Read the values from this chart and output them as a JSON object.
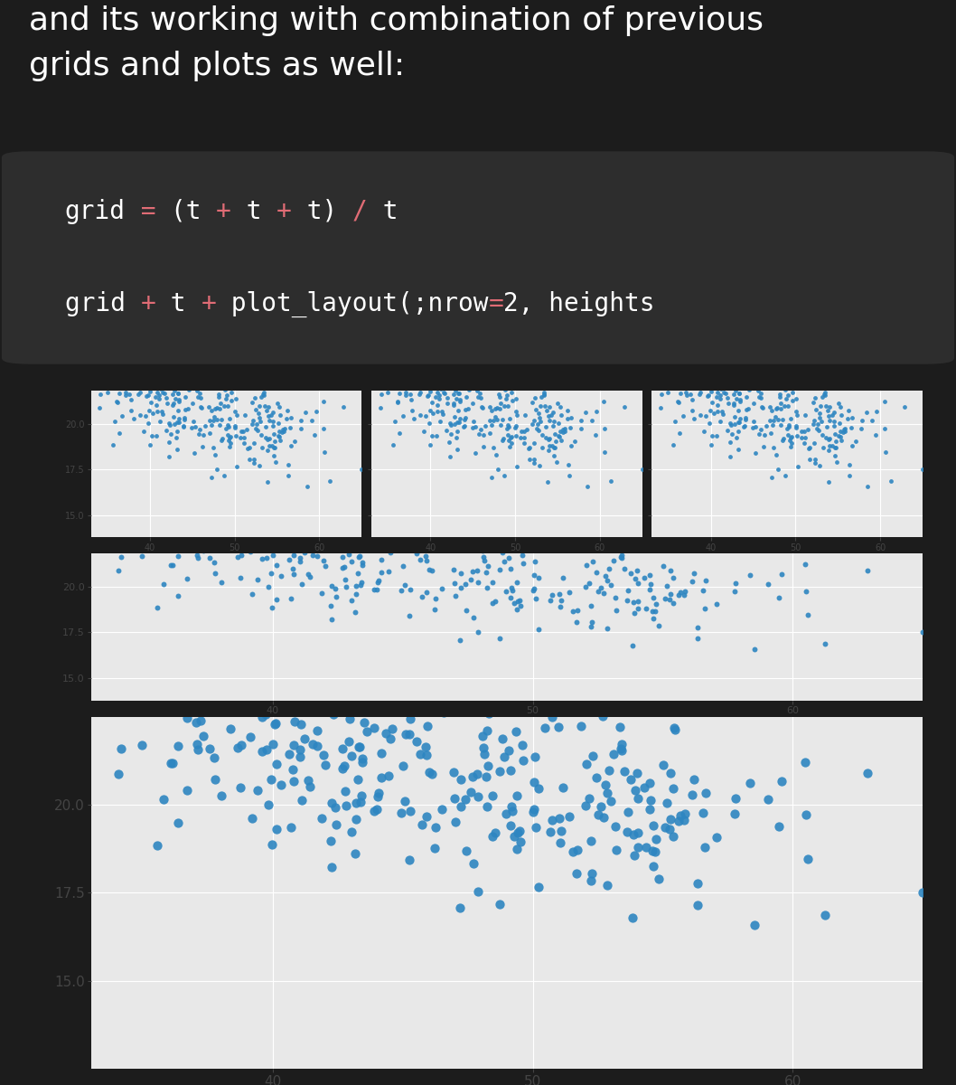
{
  "bg_color": "#1c1c1c",
  "text_color": "#ffffff",
  "title_text": "and its working with combination of previous\ngrids and plots as well:",
  "title_fontsize": 26,
  "title_fontweight": "normal",
  "code_bg": "#2d2d2d",
  "code_lines": [
    {
      "parts": [
        {
          "text": "grid",
          "color": "#ffffff"
        },
        {
          "text": " = ",
          "color": "#e06c75"
        },
        {
          "text": "(t ",
          "color": "#ffffff"
        },
        {
          "text": "+",
          "color": "#e06c75"
        },
        {
          "text": " t ",
          "color": "#ffffff"
        },
        {
          "text": "+",
          "color": "#e06c75"
        },
        {
          "text": " t) ",
          "color": "#ffffff"
        },
        {
          "text": "/",
          "color": "#e06c75"
        },
        {
          "text": " t",
          "color": "#ffffff"
        }
      ]
    },
    {
      "parts": [
        {
          "text": "grid ",
          "color": "#ffffff"
        },
        {
          "text": "+",
          "color": "#e06c75"
        },
        {
          "text": " t ",
          "color": "#ffffff"
        },
        {
          "text": "+",
          "color": "#e06c75"
        },
        {
          "text": " plot_layout(;nrow",
          "color": "#ffffff"
        },
        {
          "text": "=",
          "color": "#e06c75"
        },
        {
          "text": "2, heights",
          "color": "#ffffff"
        }
      ]
    }
  ],
  "code_fontsize": 20,
  "plot_outer_bg": "#ffffff",
  "plot_panel_bg": "#e8e8e8",
  "dot_color": "#2e86c1",
  "dot_size_small": 12,
  "dot_size_mid": 18,
  "dot_size_large": 55,
  "xlim": [
    33,
    65
  ],
  "ylim_small": [
    13.8,
    21.8
  ],
  "ylim_large": [
    12.5,
    22.5
  ],
  "xticks": [
    40,
    50,
    60
  ],
  "yticks": [
    15.0,
    17.5,
    20.0
  ],
  "seed": 42,
  "n_points": 300
}
